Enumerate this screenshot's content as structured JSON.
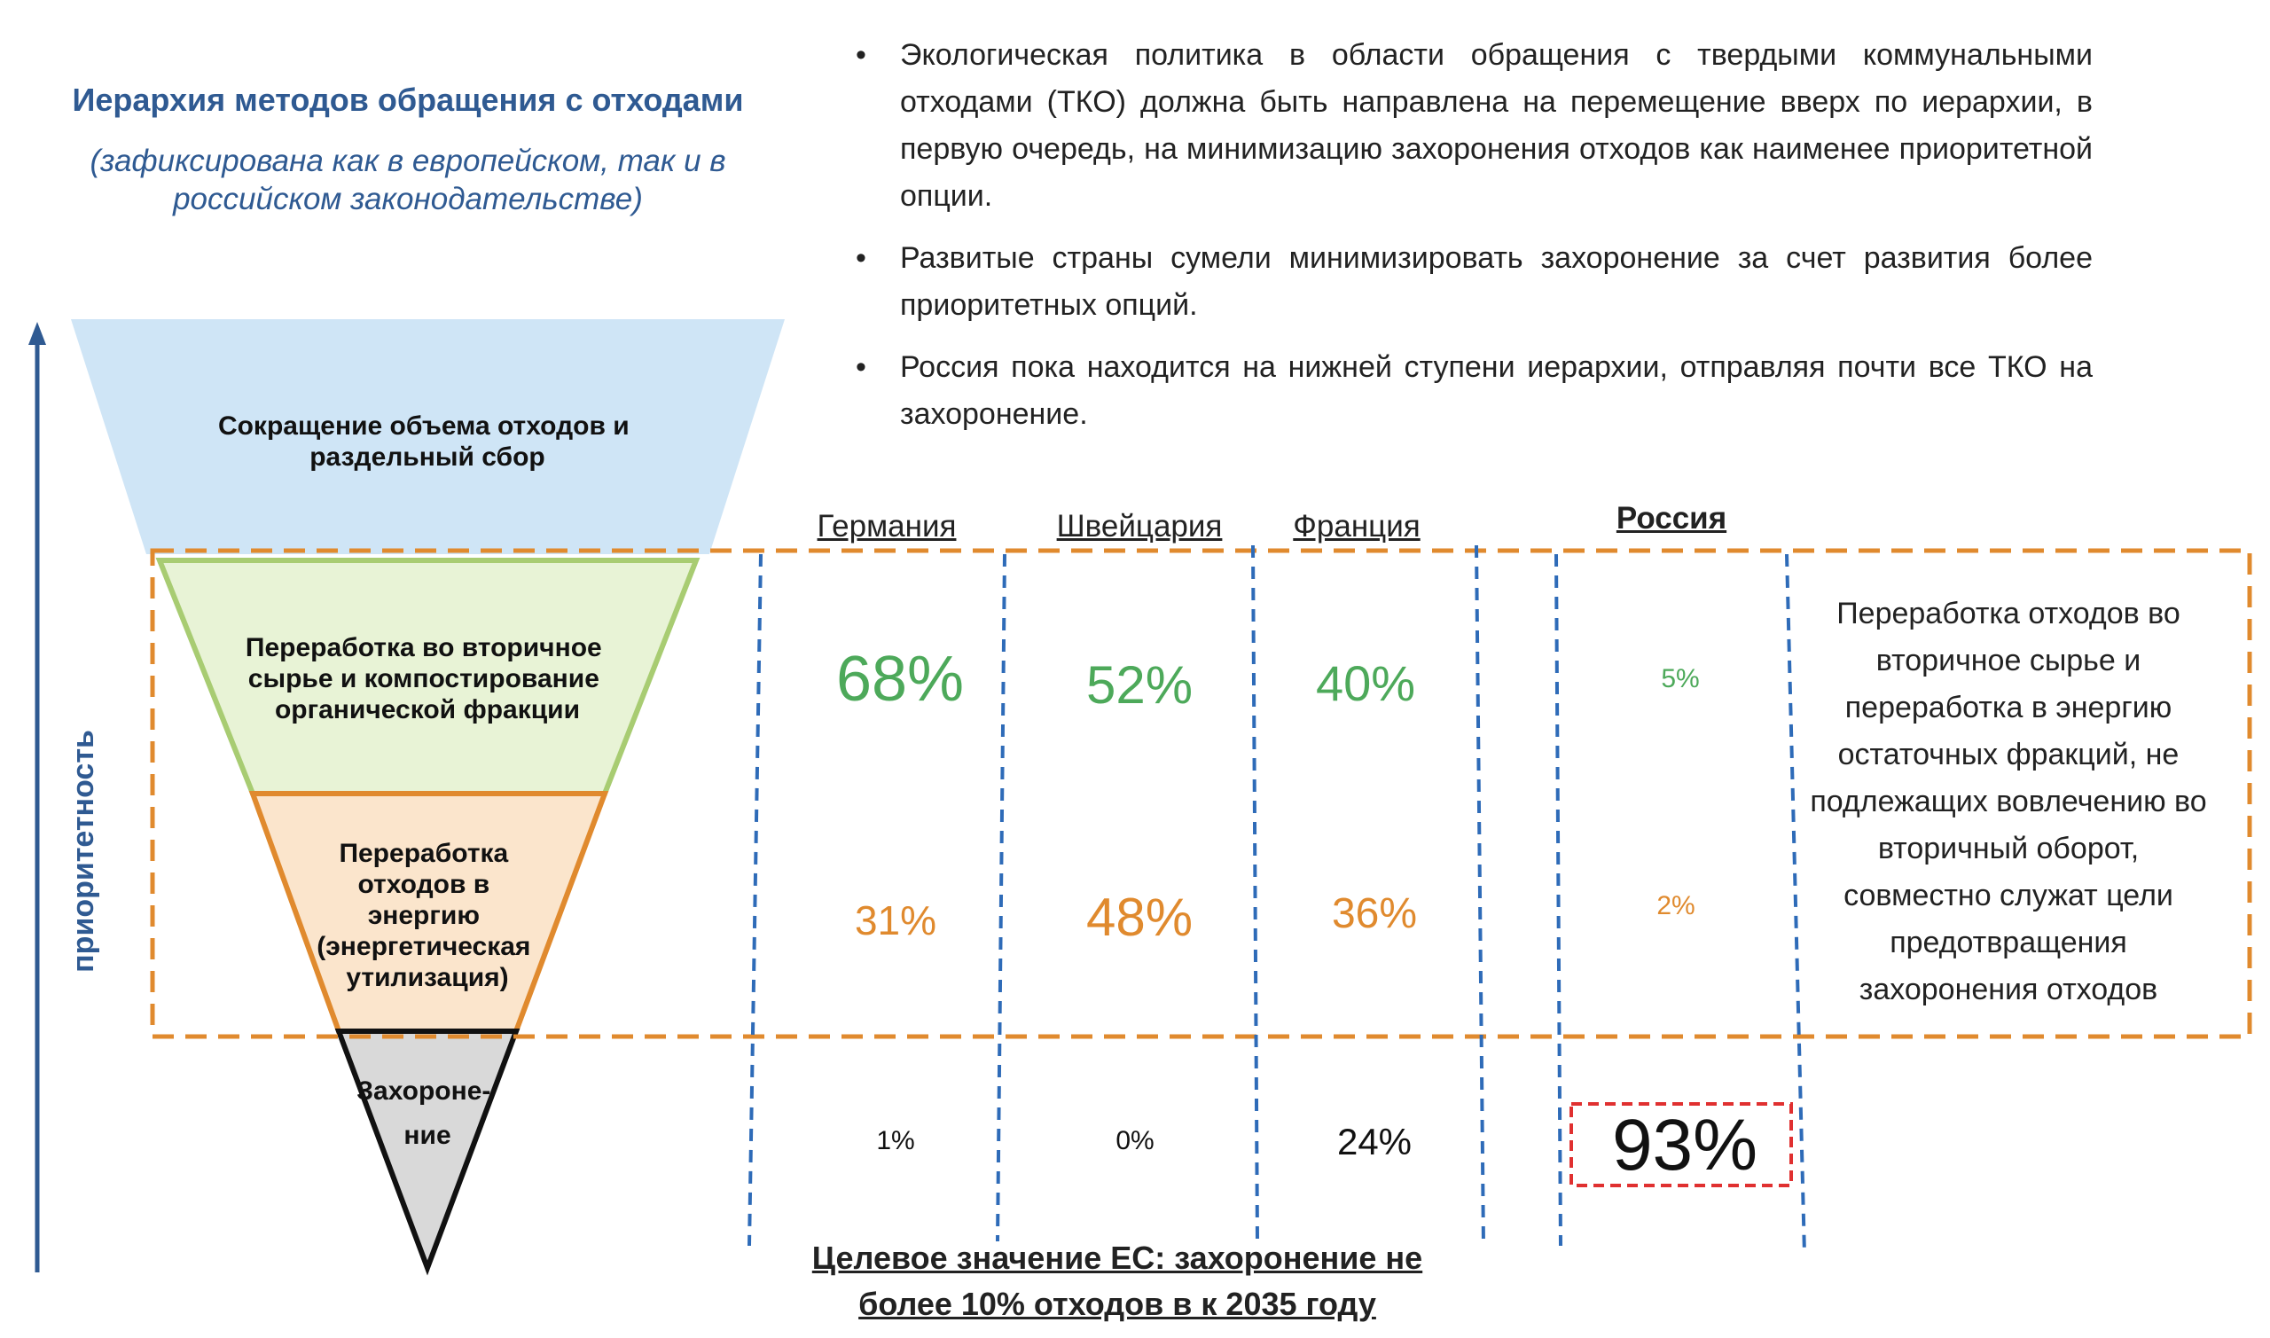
{
  "header": {
    "title": "Иерархия методов обращения с отходами",
    "subtitle": "(зафиксирована как в европейском, так и в российском законодательстве)"
  },
  "bullets": [
    "Экологическая политика в области обращения с твердыми коммунальными отходами (ТКО) должна быть направлена на перемещение вверх по иерархии, в первую очередь, на минимизацию захоронения отходов как наименее приоритетной опции.",
    "Развитые страны сумели минимизировать захоронение за счет развития более приоритетных опций.",
    "Россия пока находится на нижней ступени иерархии, отправляя почти все ТКО на захоронение."
  ],
  "bullet_marker": "•",
  "axis_label": "приоритетность",
  "funnel": {
    "level1": [
      "Сокращение объема отходов и",
      "раздельный сбор"
    ],
    "level2": [
      "Переработка во вторичное",
      "сырье и компостирование",
      "органической фракции"
    ],
    "level3": [
      "Переработка",
      "отходов в",
      "энергию",
      "(энергетическая",
      "утилизация)"
    ],
    "level4": [
      "Захороне-",
      "ние"
    ]
  },
  "countries": [
    "Германия",
    "Швейцария",
    "Франция",
    "Россия"
  ],
  "rows": {
    "recycling": [
      "68%",
      "52%",
      "40%",
      "5%"
    ],
    "energy": [
      "31%",
      "48%",
      "36%",
      "2%"
    ],
    "landfill": [
      "1%",
      "0%",
      "24%",
      "93%"
    ]
  },
  "side_note": "Переработка отходов во вторичное сырье и переработка в энергию остаточных фракций, не подлежащих вовлечению во вторичный оборот, совместно служат цели предотвращения захоронения отходов",
  "target": [
    "Целевое значение ЕС: захоронение не",
    "более 10% отходов в к 2035 году"
  ],
  "colors": {
    "title_blue": "#2f5a92",
    "recycling_green": "#4da95a",
    "energy_orange": "#e08a2e",
    "dashed_orange": "#e08a2e",
    "dashed_blue": "#2e6bb8",
    "highlight_red": "#e03030",
    "funnel_top": "#cfe5f6",
    "funnel_green": "#e8f3d6",
    "funnel_orange": "#fbe5cc",
    "funnel_grey": "#d9d9d9"
  }
}
